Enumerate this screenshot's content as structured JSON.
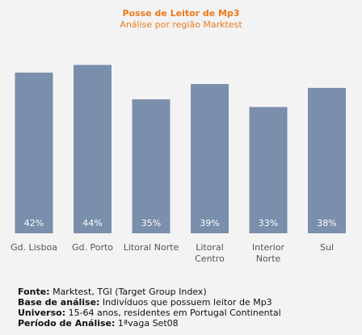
{
  "chart_data": {
    "type": "bar",
    "title": "Posse de Leitor de Mp3",
    "subtitle": "Análise por região Marktest",
    "categories": [
      "Gd. Lisboa",
      "Gd. Porto",
      "Litoral Norte",
      "Litoral Centro",
      "Interior Norte",
      "Sul"
    ],
    "category_lines": [
      [
        "Gd. Lisboa"
      ],
      [
        "Gd. Porto"
      ],
      [
        "Litoral Norte"
      ],
      [
        "Litoral",
        "Centro"
      ],
      [
        "Interior",
        "Norte"
      ],
      [
        "Sul"
      ]
    ],
    "values": [
      42,
      44,
      35,
      39,
      33,
      38
    ],
    "data_labels": [
      "42%",
      "44%",
      "35%",
      "39%",
      "33%",
      "38%"
    ],
    "ylim": [
      0,
      50
    ],
    "grid": false,
    "bar_color": "#7a8fab",
    "label_color": "#ffffff",
    "title_color": "#ec7a1c"
  },
  "footer": {
    "fonte_label": "Fonte:",
    "fonte_text": " Marktest, TGI (Target Group Index)",
    "base_label": "Base de análise:",
    "base_text": " Indivíduos que possuem leitor de Mp3",
    "universo_label": "Universo:",
    "universo_text": " 15-64 anos, residentes em Portugal Continental",
    "periodo_label": "Período de Análise:",
    "periodo_text": " 1ªvaga Set08"
  }
}
